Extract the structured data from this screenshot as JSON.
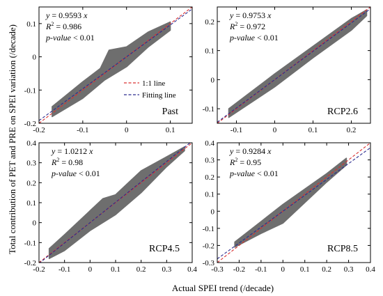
{
  "figure": {
    "xlabel": "Actual SPEI trend (/decade)",
    "ylabel": "Total contribution of PET and PRE on SPEI variation (/decade)"
  },
  "legend": {
    "items": [
      {
        "label": "1:1 line",
        "color": "#d93030",
        "style": "dashed"
      },
      {
        "label": "Fitting line",
        "color": "#2b2b8f",
        "style": "dashed"
      }
    ]
  },
  "colors": {
    "scatter": "#6e6e6e",
    "one_to_one": "#d93030",
    "fit": "#2b2b8f"
  },
  "chart_data": [
    {
      "type": "scatter",
      "panel": "Past",
      "slope": 0.9593,
      "equation_coef": "0.9593",
      "r2": "0.986",
      "pvalue": "< 0.01",
      "xlim": [
        -0.2,
        0.15
      ],
      "ylim": [
        -0.2,
        0.15
      ],
      "xticks": [
        -0.2,
        -0.1,
        0,
        0.1
      ],
      "yticks": [
        -0.2,
        -0.1,
        0,
        0.1
      ],
      "xtick_labels": [
        "-0.2",
        "-0.1",
        "0",
        "0.1"
      ],
      "ytick_labels": [
        "-0.2",
        "-0.1",
        "0",
        "0.1"
      ],
      "cloud_center": [
        [
          -0.17,
          -0.16
        ],
        [
          -0.1,
          -0.096
        ],
        [
          0,
          -0.002
        ],
        [
          0.07,
          0.068
        ],
        [
          0.1,
          0.097
        ]
      ],
      "cloud_upper": [
        [
          -0.17,
          -0.15
        ],
        [
          -0.1,
          -0.075
        ],
        [
          -0.06,
          -0.035
        ],
        [
          -0.04,
          0.02
        ],
        [
          0.0,
          0.03
        ],
        [
          0.05,
          0.075
        ],
        [
          0.1,
          0.105
        ]
      ],
      "cloud_lower": [
        [
          -0.17,
          -0.18
        ],
        [
          -0.1,
          -0.125
        ],
        [
          -0.05,
          -0.07
        ],
        [
          0,
          -0.03
        ],
        [
          0.05,
          0.03
        ],
        [
          0.1,
          0.08
        ]
      ]
    },
    {
      "type": "scatter",
      "panel": "RCP2.6",
      "slope": 0.9753,
      "equation_coef": "0.9753",
      "r2": "0.972",
      "pvalue": "< 0.01",
      "xlim": [
        -0.15,
        0.25
      ],
      "ylim": [
        -0.15,
        0.25
      ],
      "xticks": [
        -0.1,
        0,
        0.1,
        0.2
      ],
      "yticks": [
        -0.1,
        0,
        0.1,
        0.2
      ],
      "xtick_labels": [
        "-0.1",
        "0",
        "0.1",
        "0.2"
      ],
      "ytick_labels": [
        "-0.1",
        "0",
        "0.1",
        "0.2"
      ],
      "cloud_upper": [
        [
          -0.12,
          -0.1
        ],
        [
          0,
          0.02
        ],
        [
          0.1,
          0.115
        ],
        [
          0.2,
          0.21
        ],
        [
          0.24,
          0.24
        ]
      ],
      "cloud_lower": [
        [
          -0.12,
          -0.13
        ],
        [
          0,
          -0.025
        ],
        [
          0.1,
          0.075
        ],
        [
          0.2,
          0.17
        ],
        [
          0.24,
          0.22
        ]
      ]
    },
    {
      "type": "scatter",
      "panel": "RCP4.5",
      "slope": 1.0212,
      "equation_coef": "1.0212",
      "r2": "0.98",
      "pvalue": "< 0.01",
      "xlim": [
        -0.2,
        0.4
      ],
      "ylim": [
        -0.2,
        0.4
      ],
      "xticks": [
        -0.2,
        -0.1,
        0,
        0.1,
        0.2,
        0.3,
        0.4
      ],
      "yticks": [
        -0.2,
        -0.1,
        0,
        0.1,
        0.2,
        0.3,
        0.4
      ],
      "xtick_labels": [
        "-0.2",
        "-0.1",
        "0",
        "0.1",
        "0.2",
        "0.3",
        "0.4"
      ],
      "ytick_labels": [
        "-0.2",
        "-0.1",
        "0",
        "0.1",
        "0.2",
        "0.3",
        "0.4"
      ],
      "cloud_upper": [
        [
          -0.16,
          -0.13
        ],
        [
          -0.1,
          -0.06
        ],
        [
          0,
          0.06
        ],
        [
          0.05,
          0.12
        ],
        [
          0.1,
          0.14
        ],
        [
          0.15,
          0.2
        ],
        [
          0.2,
          0.26
        ],
        [
          0.3,
          0.33
        ],
        [
          0.37,
          0.38
        ]
      ],
      "cloud_lower": [
        [
          -0.16,
          -0.18
        ],
        [
          -0.1,
          -0.14
        ],
        [
          0,
          -0.04
        ],
        [
          0.1,
          0.04
        ],
        [
          0.2,
          0.15
        ],
        [
          0.3,
          0.28
        ],
        [
          0.37,
          0.36
        ]
      ]
    },
    {
      "type": "scatter",
      "panel": "RCP8.5",
      "slope": 0.9284,
      "equation_coef": "0.9284",
      "r2": "0.95",
      "pvalue": "< 0.01",
      "xlim": [
        -0.3,
        0.4
      ],
      "ylim": [
        -0.3,
        0.4
      ],
      "xticks": [
        -0.3,
        -0.2,
        -0.1,
        0,
        0.1,
        0.2,
        0.3,
        0.4
      ],
      "yticks": [
        -0.3,
        -0.2,
        -0.1,
        0,
        0.1,
        0.2,
        0.3,
        0.4
      ],
      "xtick_labels": [
        "-0.3",
        "-0.2",
        "-0.1",
        "0",
        "0.1",
        "0.2",
        "0.3",
        "0.4"
      ],
      "ytick_labels": [
        "-0.3",
        "-0.2",
        "-0.1",
        "0",
        "0.1",
        "0.2",
        "0.3",
        "0.4"
      ],
      "cloud_upper": [
        [
          -0.22,
          -0.18
        ],
        [
          -0.1,
          -0.06
        ],
        [
          0,
          0.04
        ],
        [
          0.1,
          0.13
        ],
        [
          0.2,
          0.22
        ],
        [
          0.29,
          0.31
        ]
      ],
      "cloud_lower": [
        [
          -0.22,
          -0.21
        ],
        [
          -0.1,
          -0.13
        ],
        [
          0,
          -0.07
        ],
        [
          0.1,
          0.05
        ],
        [
          0.2,
          0.17
        ],
        [
          0.29,
          0.27
        ]
      ]
    }
  ]
}
